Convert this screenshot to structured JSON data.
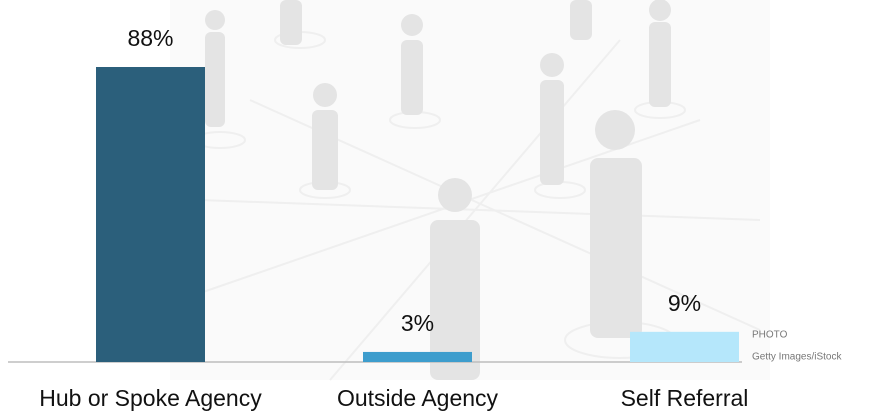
{
  "chart_data": {
    "type": "bar",
    "categories": [
      "Hub or Spoke Agency",
      "Outside Agency",
      "Self Referral"
    ],
    "values": [
      88,
      3,
      9
    ],
    "value_labels": [
      "88%",
      "3%",
      "9%"
    ],
    "colors": [
      "#2b5f7b",
      "#3d9dcd",
      "#b5e7fb"
    ]
  },
  "credit": {
    "label": "PHOTO",
    "source": "Getty Images/iStock"
  }
}
